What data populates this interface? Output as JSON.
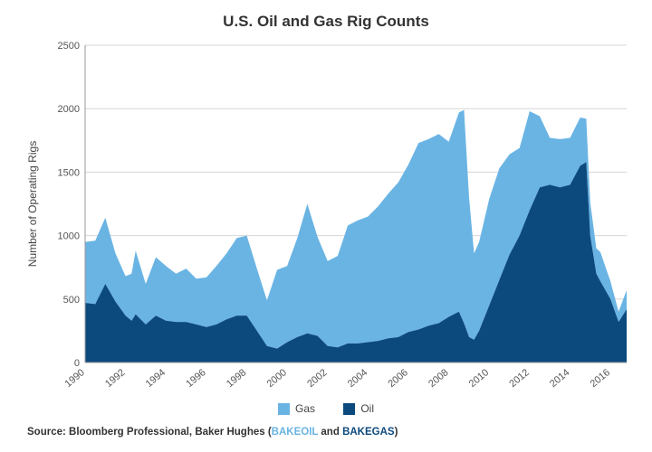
{
  "chart_data": {
    "type": "area",
    "title": "U.S. Oil and Gas Rig Counts",
    "xlabel": "",
    "ylabel": "Number of Operating Rigs",
    "xlim": [
      1990,
      2016.8
    ],
    "ylim": [
      0,
      2500
    ],
    "yticks": [
      0,
      500,
      1000,
      1500,
      2000,
      2500
    ],
    "ytick_labels": [
      "0",
      "500",
      "1000",
      "1500",
      "2000",
      "2500"
    ],
    "xticks": [
      1990,
      1992,
      1994,
      1996,
      1998,
      2000,
      2002,
      2004,
      2006,
      2008,
      2010,
      2012,
      2014,
      2016
    ],
    "xtick_labels": [
      "1990",
      "1992",
      "1994",
      "1996",
      "1998",
      "2000",
      "2002",
      "2004",
      "2006",
      "2008",
      "2010",
      "2012",
      "2014",
      "2016"
    ],
    "grid": true,
    "stacked": true,
    "x": [
      1990.0,
      1990.5,
      1991.0,
      1991.5,
      1992.0,
      1992.3,
      1992.5,
      1993.0,
      1993.5,
      1994.0,
      1994.5,
      1995.0,
      1995.5,
      1996.0,
      1996.5,
      1997.0,
      1997.5,
      1998.0,
      1998.5,
      1999.0,
      1999.5,
      2000.0,
      2000.5,
      2001.0,
      2001.5,
      2002.0,
      2002.5,
      2003.0,
      2003.5,
      2004.0,
      2004.5,
      2005.0,
      2005.5,
      2006.0,
      2006.5,
      2007.0,
      2007.5,
      2008.0,
      2008.5,
      2008.75,
      2009.0,
      2009.25,
      2009.5,
      2010.0,
      2010.5,
      2011.0,
      2011.5,
      2012.0,
      2012.5,
      2013.0,
      2013.5,
      2014.0,
      2014.5,
      2014.8,
      2015.0,
      2015.3,
      2015.5,
      2016.0,
      2016.4,
      2016.8
    ],
    "series": [
      {
        "name": "Oil",
        "color": "#0c4a7e",
        "values": [
          470,
          460,
          620,
          480,
          370,
          330,
          380,
          300,
          370,
          330,
          320,
          320,
          300,
          280,
          300,
          340,
          370,
          370,
          250,
          130,
          110,
          160,
          200,
          230,
          210,
          130,
          120,
          150,
          150,
          160,
          170,
          190,
          200,
          240,
          260,
          290,
          310,
          360,
          400,
          310,
          200,
          180,
          250,
          450,
          650,
          850,
          1000,
          1200,
          1380,
          1400,
          1380,
          1400,
          1550,
          1580,
          1000,
          700,
          640,
          500,
          320,
          420
        ]
      },
      {
        "name": "Gas",
        "color": "#6ab4e4",
        "values": [
          480,
          500,
          520,
          380,
          310,
          370,
          500,
          320,
          460,
          430,
          380,
          420,
          360,
          390,
          460,
          520,
          610,
          630,
          490,
          360,
          620,
          600,
          780,
          1020,
          780,
          670,
          720,
          930,
          970,
          990,
          1060,
          1140,
          1220,
          1320,
          1470,
          1470,
          1490,
          1380,
          1570,
          1680,
          1100,
          680,
          700,
          840,
          880,
          790,
          690,
          780,
          560,
          370,
          380,
          370,
          380,
          340,
          260,
          200,
          230,
          140,
          80,
          150
        ]
      }
    ],
    "legend": [
      "Gas",
      "Oil"
    ],
    "legend_position": "bottom-center"
  },
  "source": {
    "prefix": "Source: Bloomberg Professional, Baker Hughes (",
    "oil_ticker": "BAKEOIL",
    "conjunction": " and ",
    "gas_ticker": "BAKEGAS",
    "suffix": ")"
  }
}
